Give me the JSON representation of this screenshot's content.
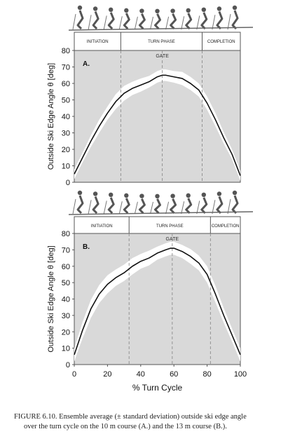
{
  "chart_data": [
    {
      "type": "line",
      "panel_label": "A.",
      "gate_label": "GATE",
      "phases": [
        {
          "label": "INITIATION",
          "start": 0,
          "end": 28
        },
        {
          "label": "TURN PHASE",
          "start": 28,
          "end": 77
        },
        {
          "label": "COMPLETION",
          "start": 77,
          "end": 100
        }
      ],
      "phase_lines": [
        28,
        53,
        77
      ],
      "gate_line": 53,
      "xlim": [
        0,
        100
      ],
      "ylim": [
        0,
        80
      ],
      "yticks": [
        0,
        10,
        20,
        30,
        40,
        50,
        60,
        70,
        80
      ],
      "ylabel": "Outside Ski Edge Angle θ [deg]",
      "grid": false,
      "series": [
        {
          "x": [
            0,
            5,
            10,
            15,
            20,
            25,
            30,
            35,
            40,
            45,
            50,
            53,
            55,
            60,
            65,
            70,
            75,
            80,
            85,
            90,
            95,
            100
          ],
          "mean": [
            5,
            15,
            25,
            34,
            42,
            49,
            54,
            57,
            59,
            61,
            64,
            65,
            65,
            64,
            63,
            60,
            56,
            48,
            38,
            27,
            17,
            4
          ],
          "sd": [
            3,
            3,
            3.5,
            4,
            4,
            4.5,
            4.5,
            4,
            4,
            3.5,
            3.5,
            3.5,
            3.5,
            3.5,
            4,
            4,
            4,
            4,
            4,
            3.5,
            3,
            3
          ]
        }
      ]
    },
    {
      "type": "line",
      "panel_label": "B.",
      "gate_label": "GATE",
      "phases": [
        {
          "label": "INITIATION",
          "start": 0,
          "end": 33
        },
        {
          "label": "TURN PHASE",
          "start": 33,
          "end": 82
        },
        {
          "label": "COMPLETION",
          "start": 82,
          "end": 100
        }
      ],
      "phase_lines": [
        33,
        59,
        82
      ],
      "gate_line": 59,
      "xlim": [
        0,
        100
      ],
      "ylim": [
        0,
        80
      ],
      "yticks": [
        0,
        10,
        20,
        30,
        40,
        50,
        60,
        70,
        80
      ],
      "xticks": [
        0,
        20,
        40,
        60,
        80,
        100
      ],
      "ylabel": "Outside Ski Edge Angle θ [deg]",
      "xlabel": "% Turn Cycle",
      "grid": false,
      "series": [
        {
          "x": [
            0,
            5,
            10,
            15,
            20,
            25,
            30,
            35,
            40,
            45,
            50,
            55,
            58,
            60,
            65,
            70,
            75,
            80,
            85,
            90,
            95,
            100
          ],
          "mean": [
            6,
            21,
            34,
            43,
            49,
            53,
            56,
            60,
            63,
            65,
            68,
            70,
            71,
            71,
            69,
            66,
            62,
            55,
            43,
            30,
            18,
            6
          ],
          "sd": [
            4,
            5,
            5.5,
            5.5,
            5.5,
            5,
            5,
            5,
            4.5,
            4.5,
            4,
            4,
            4,
            4,
            4,
            4.5,
            4.5,
            5,
            5,
            4.5,
            4,
            4
          ]
        }
      ]
    }
  ],
  "caption": {
    "line1": "FIGURE 6.10.  Ensemble average (± standard deviation) outside ski edge angle",
    "line2": "over the turn cycle on the 10 m course (A.) and the 13 m course (B.)."
  },
  "colors": {
    "plot_bg": "#d9d9d9",
    "sd_band": "#ffffff",
    "mean_line": "#111111",
    "dashed_line": "#8c8c8c",
    "frame": "#555555"
  },
  "icons": [
    "skier-sequence-icon"
  ]
}
